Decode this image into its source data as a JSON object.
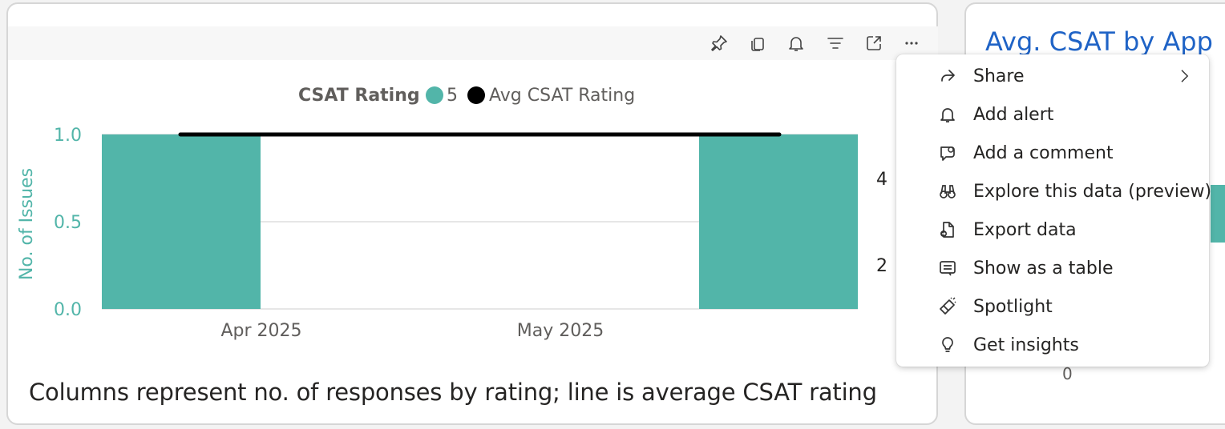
{
  "toolbar": {
    "icons": [
      "pin-icon",
      "copy-icon",
      "bell-icon",
      "filter-icon",
      "focus-mode-icon",
      "more-options-icon"
    ]
  },
  "chart_data": {
    "type": "bar",
    "legend": {
      "title": "CSAT Rating",
      "items": [
        {
          "label": "5",
          "color": "#52b5a9",
          "marker": "circle"
        },
        {
          "label": "Avg CSAT Rating",
          "color": "#000000",
          "marker": "circle"
        }
      ],
      "placement": "top-center"
    },
    "categories": [
      "Apr 2025",
      "May 2025"
    ],
    "series": [
      {
        "name": "5",
        "type": "bar",
        "color": "#52b5a9",
        "values": [
          1,
          1
        ]
      },
      {
        "name": "Avg CSAT Rating",
        "type": "line",
        "color": "#000000",
        "values": [
          5,
          5
        ],
        "axis": "secondary"
      }
    ],
    "y_axis": {
      "label": "No. of Issues",
      "ticks": [
        "0.0",
        "0.5",
        "1.0"
      ],
      "range": [
        0,
        1
      ],
      "color": "#52b5a9"
    },
    "y2_axis": {
      "ticks_visible": [
        "2",
        "4"
      ]
    },
    "grid": true
  },
  "caption": "Columns represent no. of responses by rating; line is average CSAT rating",
  "right_card": {
    "title": "Avg. CSAT by App",
    "axis_zero": "0"
  },
  "context_menu": {
    "items": [
      {
        "label": "Share",
        "icon": "share-icon",
        "submenu": true
      },
      {
        "label": "Add alert",
        "icon": "bell-icon",
        "submenu": false
      },
      {
        "label": "Add a comment",
        "icon": "comment-icon",
        "submenu": false
      },
      {
        "label": "Explore this data (preview)",
        "icon": "binoculars-icon",
        "submenu": false
      },
      {
        "label": "Export data",
        "icon": "export-icon",
        "submenu": false
      },
      {
        "label": "Show as a table",
        "icon": "table-icon",
        "submenu": false
      },
      {
        "label": "Spotlight",
        "icon": "spotlight-icon",
        "submenu": false
      },
      {
        "label": "Get insights",
        "icon": "lightbulb-icon",
        "submenu": false
      }
    ]
  }
}
